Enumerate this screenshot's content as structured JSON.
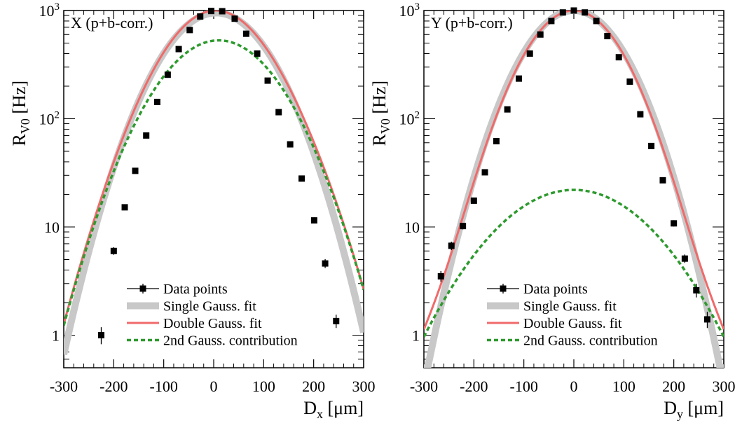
{
  "chart_data": [
    {
      "type": "scatter",
      "panel_label": "X (p+b-corr.)",
      "xlabel": "D",
      "xlabel_sub": "x",
      "xlabel_unit": "[μm]",
      "ylabel": "R",
      "ylabel_sub": "V0",
      "ylabel_unit": "[Hz]",
      "log_y": true,
      "xlim": [
        -300,
        300
      ],
      "ylim": [
        0.5,
        1000
      ],
      "x_ticks": [
        -300,
        -200,
        -100,
        0,
        100,
        200,
        300
      ],
      "y_ticks": [
        {
          "value": 1,
          "label": "1"
        },
        {
          "value": 10,
          "label": "10"
        },
        {
          "value": 100,
          "label": "10",
          "exp": "2"
        },
        {
          "value": 1000,
          "label": "10",
          "exp": "3"
        }
      ],
      "data_points": {
        "name": "Data points",
        "x": [
          -225,
          -200,
          -178,
          -157,
          -135,
          -113,
          -92,
          -70,
          -48,
          -27,
          -5,
          17,
          42,
          65,
          87,
          108,
          130,
          153,
          176,
          201,
          223,
          245
        ],
        "y": [
          1.0,
          6.0,
          15.2,
          33,
          70,
          143,
          255,
          440,
          660,
          880,
          990,
          985,
          840,
          610,
          400,
          225,
          115,
          58,
          28,
          11.5,
          4.6,
          1.35
        ],
        "yerr": [
          0.15,
          0.3,
          0.5,
          0.8,
          1.5,
          3,
          5,
          8,
          10,
          12,
          14,
          14,
          12,
          10,
          8,
          5,
          3,
          1.5,
          0.8,
          0.4,
          0.3,
          0.15
        ]
      },
      "single_gauss": {
        "name": "Single Gauss. fit",
        "A": 950,
        "mu": 5,
        "sigma": 80
      },
      "double_gauss": {
        "name": "Double Gauss. fit",
        "A1": 470,
        "mu1": 0,
        "sigma1": 69,
        "A2": 530,
        "mu2": 10,
        "sigma2": 89
      },
      "second_gauss": {
        "name": "2nd Gauss. contribution",
        "A": 530,
        "mu": 10,
        "sigma": 89
      },
      "legend_position": "bottom-center"
    },
    {
      "type": "scatter",
      "panel_label": "Y (p+b-corr.)",
      "xlabel": "D",
      "xlabel_sub": "y",
      "xlabel_unit": "[μm]",
      "ylabel": "R",
      "ylabel_sub": "V0",
      "ylabel_unit": "[Hz]",
      "log_y": true,
      "xlim": [
        -300,
        300
      ],
      "ylim": [
        0.5,
        1000
      ],
      "x_ticks": [
        -300,
        -200,
        -100,
        0,
        100,
        200,
        300
      ],
      "y_ticks": [
        {
          "value": 1,
          "label": "1"
        },
        {
          "value": 10,
          "label": "10"
        },
        {
          "value": 100,
          "label": "10",
          "exp": "2"
        },
        {
          "value": 1000,
          "label": "10",
          "exp": "3"
        }
      ],
      "data_points": {
        "name": "Data points",
        "x": [
          -266,
          -245,
          -222,
          -200,
          -178,
          -155,
          -133,
          -110,
          -88,
          -67,
          -45,
          -22,
          0,
          22,
          45,
          67,
          90,
          112,
          133,
          155,
          178,
          200,
          222,
          245,
          267
        ],
        "y": [
          3.5,
          6.7,
          10.2,
          17.5,
          32,
          62,
          122,
          235,
          400,
          600,
          800,
          960,
          1000,
          960,
          800,
          580,
          370,
          220,
          110,
          56,
          27,
          10.8,
          5.1,
          2.6,
          1.4
        ],
        "yerr": [
          0.3,
          0.4,
          0.4,
          0.6,
          0.8,
          1.5,
          2.5,
          4,
          6,
          8,
          10,
          12,
          12,
          12,
          10,
          8,
          6,
          4,
          2.5,
          1.5,
          0.8,
          0.4,
          0.3,
          0.3,
          0.2
        ]
      },
      "single_gauss": {
        "name": "Single Gauss. fit",
        "A": 1000,
        "mu": 0,
        "sigma": 75
      },
      "double_gauss": {
        "name": "Double Gauss. fit",
        "A1": 978,
        "mu1": 0,
        "sigma1": 72,
        "A2": 22,
        "mu2": 0,
        "sigma2": 120
      },
      "second_gauss": {
        "name": "2nd Gauss. contribution",
        "A": 22,
        "mu": 0,
        "sigma": 120
      },
      "legend_position": "bottom-center"
    }
  ],
  "colors": {
    "single_gauss": "#c8c8c8",
    "double_gauss": "#f06a6a",
    "second_gauss": "#2e9a2e",
    "data": "#000000"
  }
}
